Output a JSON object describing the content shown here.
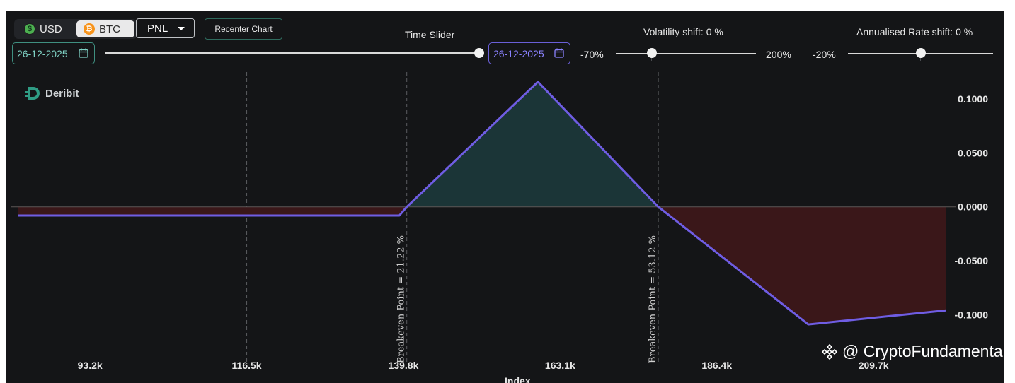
{
  "toolbar": {
    "currency_usd": "USD",
    "currency_btc": "BTC",
    "selected_currency": "BTC",
    "mode": "PNL",
    "recenter_label": "Recenter Chart"
  },
  "time_slider": {
    "label": "Time Slider",
    "start_date": "26-12-2025",
    "end_date": "26-12-2025",
    "position_fraction": 1.0
  },
  "volatility": {
    "label": "Volatility shift: 0 %",
    "min_label": "-70%",
    "max_label": "200%",
    "value_percent": 0,
    "min": -70,
    "max": 200
  },
  "rate": {
    "label": "Annualised Rate shift: 0 %",
    "min_label": "-20%",
    "value_percent": 0,
    "min": -20,
    "max": 20
  },
  "brand": {
    "name": "Deribit"
  },
  "watermark": "@ CryptoFundamenta",
  "colors": {
    "line": "#6f5de3",
    "profit_fill": "#1b3537",
    "loss_fill": "#3a1719",
    "breakeven_color": "#d0d0d0"
  },
  "chart_data": {
    "type": "area",
    "xlabel": "Index",
    "ylabel": "",
    "x_ticks": [
      "93.2k",
      "116.5k",
      "139.8k",
      "163.1k",
      "186.4k",
      "209.7k"
    ],
    "x_tick_values": [
      93200,
      116500,
      139800,
      163100,
      186400,
      209700
    ],
    "y_ticks": [
      "0.1000",
      "0.0500",
      "0.0000",
      "-0.0500",
      "-0.1000"
    ],
    "y_tick_values": [
      0.1,
      0.05,
      0.0,
      -0.05,
      -0.1
    ],
    "xlim": [
      81500,
      222000
    ],
    "ylim": [
      -0.145,
      0.125
    ],
    "series": [
      {
        "values_x": [
          82500,
          139200,
          140300,
          159800,
          177700,
          200000,
          220500
        ],
        "values_y": [
          -0.008,
          -0.008,
          0.0,
          0.116,
          0.0,
          -0.109,
          -0.096
        ]
      }
    ],
    "breakeven_points": [
      {
        "x": 140300,
        "label": "Breakeven Point = 21.22 %"
      },
      {
        "x": 177700,
        "label": "Breakeven Point = 53.12 %"
      }
    ],
    "vertical_grid_x": [
      116500,
      140300,
      177700
    ],
    "grid": true
  }
}
